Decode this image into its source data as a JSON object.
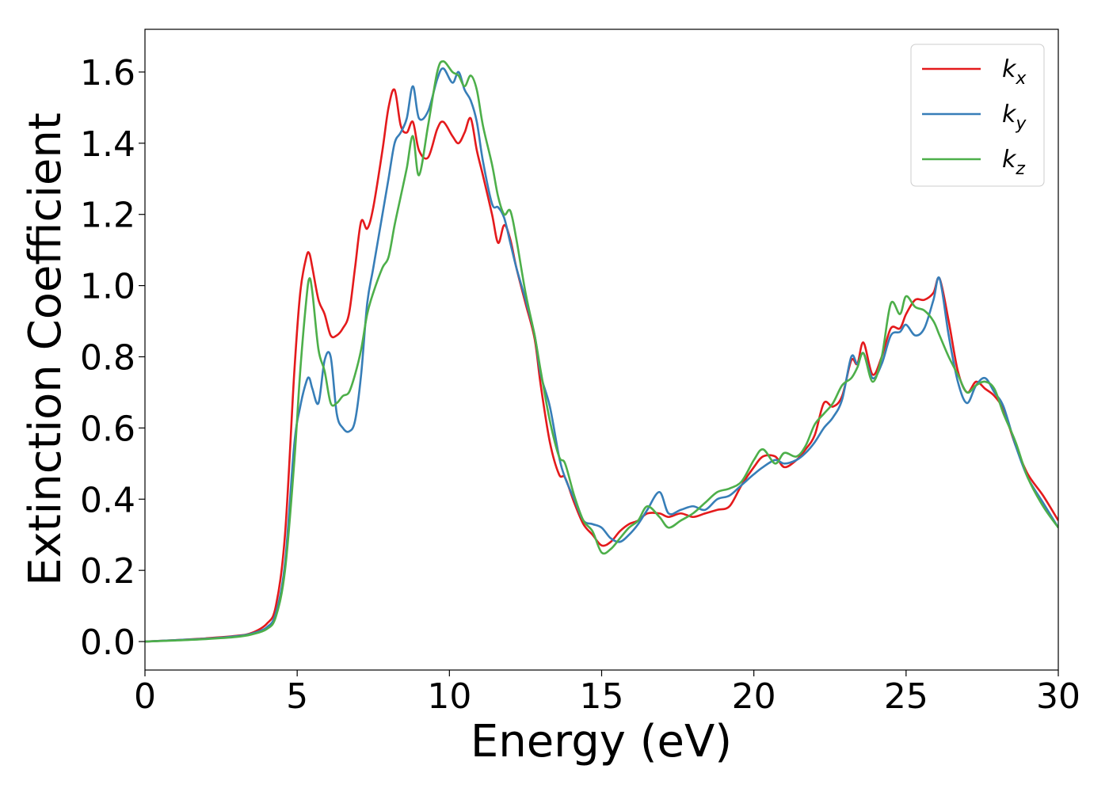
{
  "chart_data": {
    "type": "line",
    "title": "",
    "xlabel": "Energy (eV)",
    "ylabel": "Extinction Coefficient",
    "xlim": [
      0,
      30
    ],
    "ylim": [
      -0.08,
      1.72
    ],
    "x_ticks": [
      0,
      5,
      10,
      15,
      20,
      25,
      30
    ],
    "x_tick_labels": [
      "0",
      "5",
      "10",
      "15",
      "20",
      "25",
      "30"
    ],
    "y_ticks": [
      0.0,
      0.2,
      0.4,
      0.6,
      0.8,
      1.0,
      1.2,
      1.4,
      1.6
    ],
    "y_tick_labels": [
      "0.0",
      "0.2",
      "0.4",
      "0.6",
      "0.8",
      "1.0",
      "1.2",
      "1.4",
      "1.6"
    ],
    "grid": false,
    "legend_position": "top-right",
    "series": [
      {
        "name": "k",
        "subscript": "x",
        "color": "#e41a1c",
        "x": [
          0,
          1,
          2,
          3,
          3.5,
          4,
          4.3,
          4.6,
          4.9,
          5.1,
          5.3,
          5.4,
          5.5,
          5.7,
          5.9,
          6.1,
          6.3,
          6.5,
          6.7,
          6.9,
          7.1,
          7.3,
          7.5,
          7.8,
          8.0,
          8.2,
          8.4,
          8.6,
          8.8,
          9.0,
          9.3,
          9.6,
          9.8,
          10.1,
          10.3,
          10.5,
          10.7,
          10.9,
          11.1,
          11.4,
          11.6,
          11.8,
          12.0,
          12.2,
          12.5,
          12.8,
          13.0,
          13.3,
          13.6,
          13.8,
          14.1,
          14.4,
          14.7,
          15.0,
          15.3,
          15.6,
          15.9,
          16.2,
          16.5,
          16.9,
          17.2,
          17.6,
          18.0,
          18.4,
          18.8,
          19.2,
          19.6,
          20.0,
          20.3,
          20.7,
          21.0,
          21.4,
          21.7,
          22.0,
          22.3,
          22.6,
          22.9,
          23.2,
          23.4,
          23.6,
          23.9,
          24.2,
          24.5,
          24.8,
          25.0,
          25.3,
          25.6,
          25.9,
          26.1,
          26.4,
          26.7,
          27.0,
          27.3,
          27.6,
          27.9,
          28.2,
          28.6,
          29.0,
          29.5,
          30.0
        ],
        "y": [
          0.0,
          0.004,
          0.009,
          0.016,
          0.024,
          0.05,
          0.1,
          0.3,
          0.75,
          0.98,
          1.08,
          1.09,
          1.05,
          0.96,
          0.92,
          0.86,
          0.86,
          0.88,
          0.92,
          1.05,
          1.18,
          1.16,
          1.22,
          1.38,
          1.5,
          1.55,
          1.45,
          1.43,
          1.46,
          1.38,
          1.36,
          1.44,
          1.46,
          1.42,
          1.4,
          1.43,
          1.47,
          1.38,
          1.31,
          1.2,
          1.12,
          1.17,
          1.13,
          1.05,
          0.95,
          0.85,
          0.72,
          0.56,
          0.47,
          0.46,
          0.39,
          0.33,
          0.3,
          0.27,
          0.28,
          0.31,
          0.33,
          0.34,
          0.36,
          0.36,
          0.35,
          0.36,
          0.35,
          0.36,
          0.37,
          0.38,
          0.44,
          0.49,
          0.52,
          0.52,
          0.49,
          0.51,
          0.54,
          0.58,
          0.67,
          0.66,
          0.69,
          0.79,
          0.78,
          0.84,
          0.75,
          0.8,
          0.88,
          0.88,
          0.92,
          0.96,
          0.96,
          0.98,
          1.02,
          0.9,
          0.76,
          0.7,
          0.73,
          0.71,
          0.69,
          0.65,
          0.55,
          0.47,
          0.41,
          0.34
        ]
      },
      {
        "name": "k",
        "subscript": "y",
        "color": "#377eb8",
        "x": [
          0,
          1,
          2,
          3,
          3.5,
          4,
          4.3,
          4.6,
          4.9,
          5.1,
          5.3,
          5.4,
          5.5,
          5.7,
          5.9,
          6.1,
          6.3,
          6.5,
          6.7,
          6.9,
          7.1,
          7.3,
          7.5,
          7.8,
          8.0,
          8.2,
          8.4,
          8.6,
          8.8,
          9.0,
          9.3,
          9.6,
          9.8,
          10.1,
          10.3,
          10.5,
          10.7,
          10.9,
          11.1,
          11.4,
          11.6,
          11.8,
          12.0,
          12.2,
          12.5,
          12.8,
          13.0,
          13.3,
          13.6,
          13.8,
          14.1,
          14.4,
          14.7,
          15.0,
          15.3,
          15.6,
          15.9,
          16.2,
          16.5,
          16.9,
          17.2,
          17.6,
          18.0,
          18.4,
          18.8,
          19.2,
          19.6,
          20.0,
          20.3,
          20.7,
          21.0,
          21.4,
          21.7,
          22.0,
          22.3,
          22.6,
          22.9,
          23.2,
          23.4,
          23.6,
          23.9,
          24.2,
          24.5,
          24.8,
          25.0,
          25.3,
          25.6,
          25.9,
          26.1,
          26.4,
          26.7,
          27.0,
          27.3,
          27.6,
          27.9,
          28.2,
          28.6,
          29.0,
          29.5,
          30.0
        ],
        "y": [
          0.0,
          0.004,
          0.008,
          0.015,
          0.022,
          0.04,
          0.08,
          0.22,
          0.55,
          0.66,
          0.73,
          0.74,
          0.71,
          0.67,
          0.79,
          0.8,
          0.64,
          0.6,
          0.59,
          0.62,
          0.75,
          0.95,
          1.05,
          1.2,
          1.3,
          1.4,
          1.43,
          1.47,
          1.56,
          1.47,
          1.49,
          1.58,
          1.61,
          1.57,
          1.6,
          1.55,
          1.52,
          1.46,
          1.35,
          1.23,
          1.22,
          1.19,
          1.12,
          1.05,
          0.96,
          0.86,
          0.75,
          0.66,
          0.52,
          0.46,
          0.4,
          0.34,
          0.33,
          0.32,
          0.29,
          0.28,
          0.3,
          0.33,
          0.37,
          0.42,
          0.36,
          0.37,
          0.38,
          0.37,
          0.4,
          0.41,
          0.44,
          0.47,
          0.49,
          0.51,
          0.5,
          0.51,
          0.53,
          0.56,
          0.6,
          0.63,
          0.68,
          0.8,
          0.78,
          0.81,
          0.74,
          0.78,
          0.86,
          0.87,
          0.89,
          0.86,
          0.88,
          0.96,
          1.02,
          0.86,
          0.73,
          0.67,
          0.72,
          0.74,
          0.7,
          0.66,
          0.55,
          0.46,
          0.39,
          0.32
        ]
      },
      {
        "name": "k",
        "subscript": "z",
        "color": "#4daf4a",
        "x": [
          0,
          1,
          2,
          3,
          3.5,
          4,
          4.3,
          4.6,
          4.9,
          5.1,
          5.3,
          5.4,
          5.5,
          5.7,
          5.9,
          6.1,
          6.3,
          6.5,
          6.7,
          6.9,
          7.1,
          7.3,
          7.5,
          7.8,
          8.0,
          8.2,
          8.4,
          8.6,
          8.8,
          9.0,
          9.3,
          9.6,
          9.8,
          10.1,
          10.3,
          10.5,
          10.7,
          10.9,
          11.1,
          11.4,
          11.6,
          11.8,
          12.0,
          12.2,
          12.5,
          12.8,
          13.0,
          13.3,
          13.6,
          13.8,
          14.1,
          14.4,
          14.7,
          15.0,
          15.3,
          15.6,
          15.9,
          16.2,
          16.5,
          16.9,
          17.2,
          17.6,
          18.0,
          18.4,
          18.8,
          19.2,
          19.6,
          20.0,
          20.3,
          20.7,
          21.0,
          21.4,
          21.7,
          22.0,
          22.3,
          22.6,
          22.9,
          23.2,
          23.4,
          23.6,
          23.9,
          24.2,
          24.5,
          24.8,
          25.0,
          25.3,
          25.6,
          25.9,
          26.1,
          26.4,
          26.7,
          27.0,
          27.3,
          27.6,
          27.9,
          28.2,
          28.6,
          29.0,
          29.5,
          30.0
        ],
        "y": [
          0.0,
          0.003,
          0.007,
          0.013,
          0.02,
          0.035,
          0.07,
          0.2,
          0.5,
          0.76,
          0.96,
          1.02,
          0.98,
          0.82,
          0.76,
          0.67,
          0.67,
          0.69,
          0.7,
          0.75,
          0.82,
          0.92,
          0.98,
          1.05,
          1.08,
          1.17,
          1.25,
          1.33,
          1.42,
          1.31,
          1.45,
          1.6,
          1.63,
          1.6,
          1.59,
          1.56,
          1.59,
          1.55,
          1.45,
          1.34,
          1.25,
          1.2,
          1.21,
          1.13,
          0.98,
          0.86,
          0.76,
          0.62,
          0.52,
          0.5,
          0.41,
          0.34,
          0.31,
          0.25,
          0.26,
          0.29,
          0.32,
          0.34,
          0.38,
          0.35,
          0.32,
          0.34,
          0.36,
          0.39,
          0.42,
          0.43,
          0.45,
          0.51,
          0.54,
          0.5,
          0.53,
          0.52,
          0.55,
          0.61,
          0.64,
          0.67,
          0.72,
          0.74,
          0.77,
          0.81,
          0.73,
          0.8,
          0.95,
          0.92,
          0.97,
          0.94,
          0.93,
          0.9,
          0.86,
          0.8,
          0.75,
          0.7,
          0.72,
          0.73,
          0.71,
          0.64,
          0.56,
          0.46,
          0.38,
          0.32
        ]
      }
    ]
  }
}
